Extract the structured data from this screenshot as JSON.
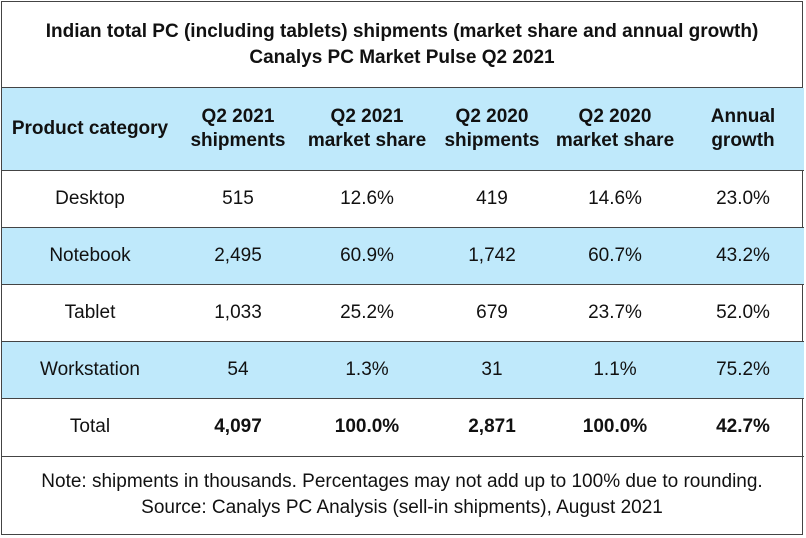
{
  "title_line1": "Indian total PC (including tablets) shipments (market share and annual growth)",
  "title_line2": "Canalys PC Market Pulse Q2 2021",
  "headers": [
    {
      "line1": "Product category",
      "line2": ""
    },
    {
      "line1": "Q2 2021",
      "line2": "shipments"
    },
    {
      "line1": "Q2 2021",
      "line2": "market share"
    },
    {
      "line1": "Q2 2020",
      "line2": "shipments"
    },
    {
      "line1": "Q2 2020",
      "line2": "market share"
    },
    {
      "line1": "Annual",
      "line2": "growth"
    }
  ],
  "rows": [
    [
      "Desktop",
      "515",
      "12.6%",
      "419",
      "14.6%",
      "23.0%"
    ],
    [
      "Notebook",
      "2,495",
      "60.9%",
      "1,742",
      "60.7%",
      "43.2%"
    ],
    [
      "Tablet",
      "1,033",
      "25.2%",
      "679",
      "23.7%",
      "52.0%"
    ],
    [
      "Workstation",
      "54",
      "1.3%",
      "31",
      "1.1%",
      "75.2%"
    ],
    [
      "Total",
      "4,097",
      "100.0%",
      "2,871",
      "100.0%",
      "42.7%"
    ]
  ],
  "footnote_line1": "Note: shipments in thousands. Percentages may not add up to 100% due to rounding.",
  "footnote_line2": "Source: Canalys PC Analysis (sell-in shipments), August 2021",
  "colors": {
    "header_fill": "#bfe9fb",
    "alt_row_fill": "#bfe9fb",
    "border": "#444444"
  },
  "chart_data": {
    "type": "table",
    "title": "Indian total PC (including tablets) shipments (market share and annual growth)",
    "subtitle": "Canalys PC Market Pulse Q2 2021",
    "columns": [
      "Product category",
      "Q2 2021 shipments",
      "Q2 2021 market share",
      "Q2 2020 shipments",
      "Q2 2020 market share",
      "Annual growth"
    ],
    "rows": [
      [
        "Desktop",
        515,
        12.6,
        419,
        14.6,
        23.0
      ],
      [
        "Notebook",
        2495,
        60.9,
        1742,
        60.7,
        43.2
      ],
      [
        "Tablet",
        1033,
        25.2,
        679,
        23.7,
        52.0
      ],
      [
        "Workstation",
        54,
        1.3,
        31,
        1.1,
        75.2
      ],
      [
        "Total",
        4097,
        100.0,
        2871,
        100.0,
        42.7
      ]
    ]
  }
}
